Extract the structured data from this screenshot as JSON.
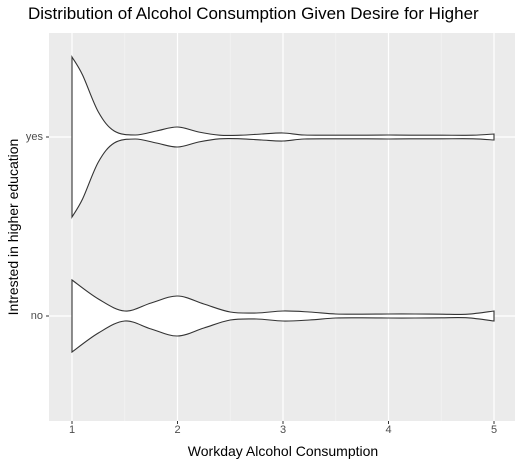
{
  "chart_data": {
    "type": "violin",
    "orientation": "horizontal",
    "title": "Distribution of Alcohol Consumption Given Desire for Higher",
    "xlabel": "Workday Alcohol Consumption",
    "ylabel": "Intrested in higher education",
    "xlim": [
      0.95,
      5.2
    ],
    "x_ticks": [
      "1",
      "2",
      "3",
      "4",
      "5"
    ],
    "categories": [
      "no",
      "yes"
    ],
    "grid": true,
    "violins": [
      {
        "category": "no",
        "profile": [
          [
            1.0,
            0.36
          ],
          [
            1.25,
            0.17
          ],
          [
            1.5,
            0.05
          ],
          [
            1.75,
            0.13
          ],
          [
            2.0,
            0.2
          ],
          [
            2.25,
            0.12
          ],
          [
            2.5,
            0.04
          ],
          [
            2.75,
            0.03
          ],
          [
            3.0,
            0.05
          ],
          [
            3.25,
            0.04
          ],
          [
            3.5,
            0.02
          ],
          [
            3.75,
            0.01
          ],
          [
            4.0,
            0.02
          ],
          [
            4.25,
            0.02
          ],
          [
            4.5,
            0.01
          ],
          [
            4.75,
            0.01
          ],
          [
            5.0,
            0.05
          ]
        ]
      },
      {
        "category": "yes",
        "profile": [
          [
            1.0,
            0.8
          ],
          [
            1.1,
            0.62
          ],
          [
            1.25,
            0.25
          ],
          [
            1.4,
            0.06
          ],
          [
            1.6,
            0.02
          ],
          [
            1.8,
            0.06
          ],
          [
            2.0,
            0.1
          ],
          [
            2.2,
            0.05
          ],
          [
            2.4,
            0.01
          ],
          [
            2.6,
            0.01
          ],
          [
            2.8,
            0.03
          ],
          [
            3.0,
            0.04
          ],
          [
            3.2,
            0.02
          ],
          [
            3.5,
            0.01
          ],
          [
            3.8,
            0.01
          ],
          [
            4.0,
            0.02
          ],
          [
            4.2,
            0.01
          ],
          [
            4.5,
            0.005
          ],
          [
            4.8,
            0.01
          ],
          [
            5.0,
            0.03
          ]
        ]
      }
    ]
  }
}
